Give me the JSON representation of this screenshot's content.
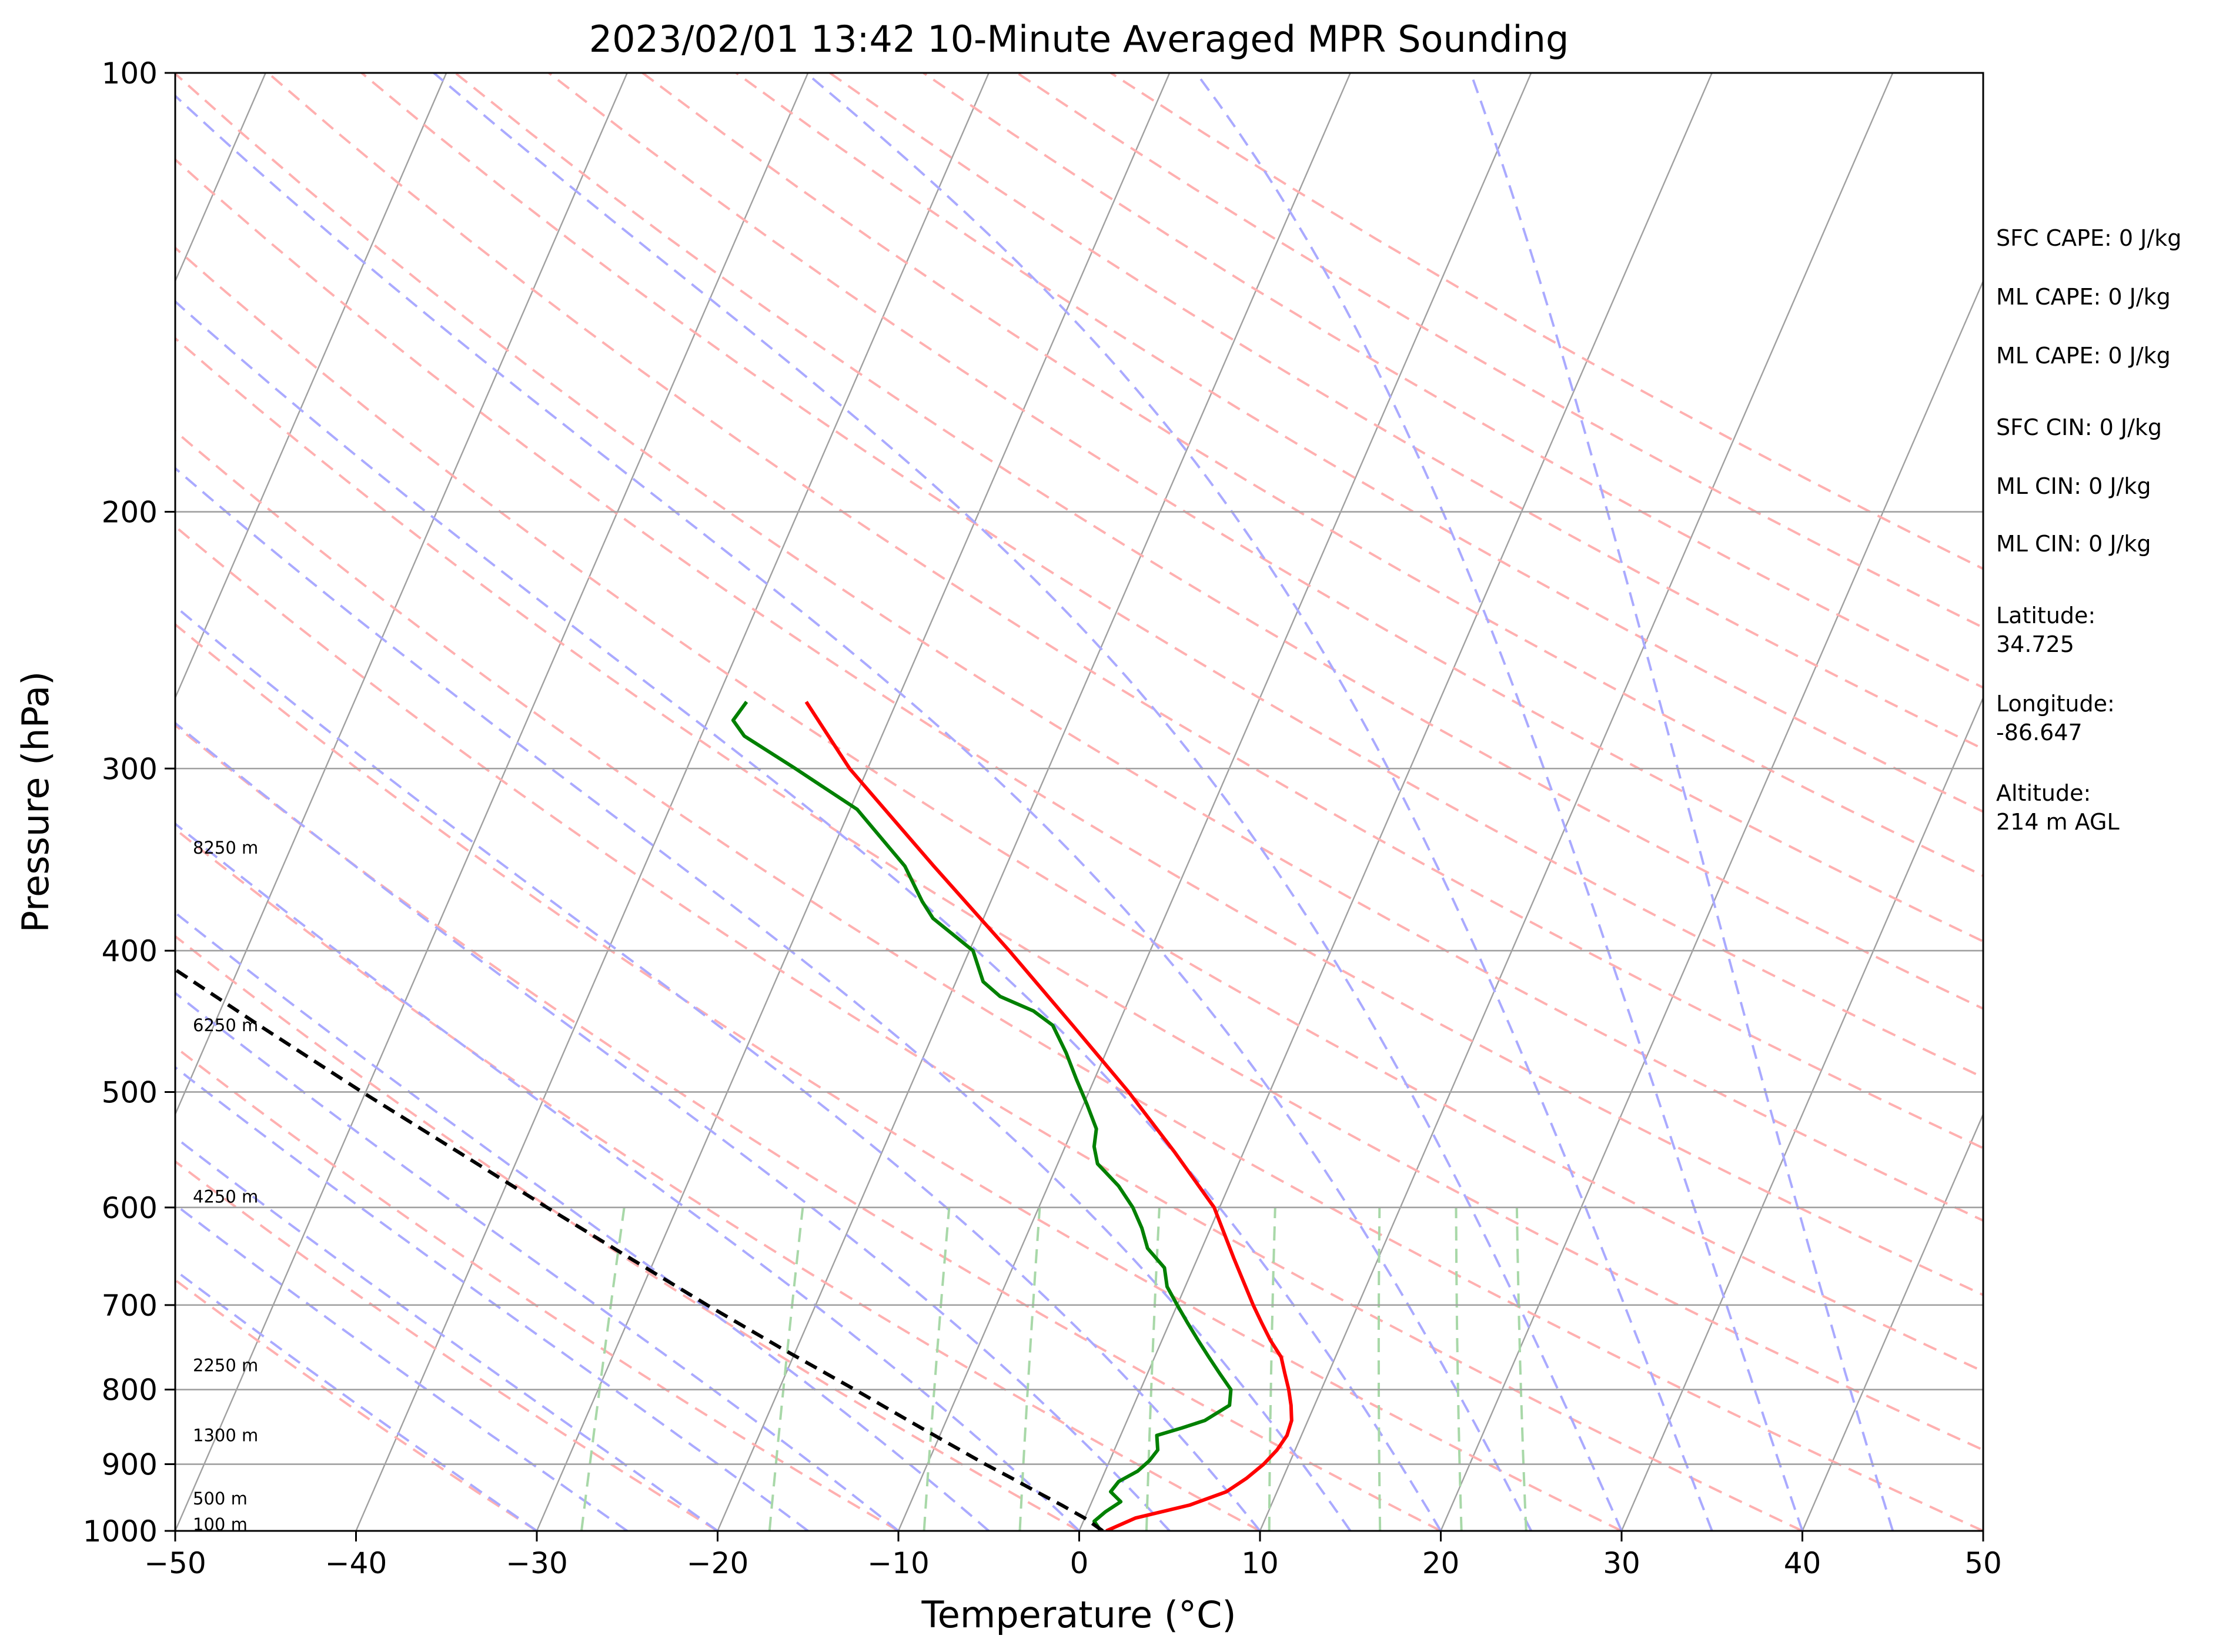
{
  "chart_data": {
    "type": "line",
    "subtype": "skew-T log-P sounding",
    "title": "2023/02/01 13:42 10-Minute Averaged MPR Sounding",
    "xlabel": "Temperature (°C)",
    "ylabel": "Pressure (hPa)",
    "xlim": [
      -50,
      50
    ],
    "ylim": [
      1000,
      100
    ],
    "y_scale": "log",
    "x_ticks": [
      "−50",
      "−40",
      "−30",
      "−20",
      "−10",
      "0",
      "10",
      "20",
      "30",
      "40",
      "50"
    ],
    "x_tick_values": [
      -50,
      -40,
      -30,
      -20,
      -10,
      0,
      10,
      20,
      30,
      40,
      50
    ],
    "y_ticks": [
      "100",
      "200",
      "300",
      "400",
      "500",
      "600",
      "700",
      "800",
      "900",
      "1000"
    ],
    "y_tick_values": [
      100,
      200,
      300,
      400,
      500,
      600,
      700,
      800,
      900,
      1000
    ],
    "grid": true,
    "series": [
      {
        "key": "temperature",
        "color": "#ff0000",
        "points": [
          [
            1000,
            1.5
          ],
          [
            980,
            2.8
          ],
          [
            960,
            5.5
          ],
          [
            940,
            7.2
          ],
          [
            920,
            8.0
          ],
          [
            900,
            8.6
          ],
          [
            880,
            9.0
          ],
          [
            860,
            9.2
          ],
          [
            840,
            9.1
          ],
          [
            820,
            8.7
          ],
          [
            800,
            8.2
          ],
          [
            780,
            7.6
          ],
          [
            760,
            7.0
          ],
          [
            740,
            6.0
          ],
          [
            720,
            5.1
          ],
          [
            700,
            4.2
          ],
          [
            650,
            2.0
          ],
          [
            600,
            -0.3
          ],
          [
            550,
            -3.8
          ],
          [
            500,
            -7.8
          ],
          [
            450,
            -12.5
          ],
          [
            400,
            -17.8
          ],
          [
            350,
            -24.0
          ],
          [
            300,
            -31.0
          ],
          [
            270,
            -35.0
          ]
        ]
      },
      {
        "key": "dewpoint",
        "color": "#008000",
        "points": [
          [
            1000,
            1.2
          ],
          [
            985,
            0.6
          ],
          [
            970,
            1.0
          ],
          [
            955,
            1.6
          ],
          [
            940,
            0.8
          ],
          [
            925,
            1.0
          ],
          [
            910,
            1.8
          ],
          [
            895,
            2.2
          ],
          [
            880,
            2.4
          ],
          [
            860,
            2.0
          ],
          [
            850,
            3.2
          ],
          [
            840,
            4.3
          ],
          [
            820,
            5.3
          ],
          [
            800,
            5.0
          ],
          [
            780,
            4.0
          ],
          [
            760,
            3.0
          ],
          [
            740,
            2.0
          ],
          [
            720,
            1.0
          ],
          [
            700,
            0.0
          ],
          [
            680,
            -1.0
          ],
          [
            660,
            -1.6
          ],
          [
            640,
            -3.0
          ],
          [
            620,
            -3.8
          ],
          [
            600,
            -4.8
          ],
          [
            580,
            -6.1
          ],
          [
            560,
            -7.8
          ],
          [
            545,
            -8.4
          ],
          [
            530,
            -8.7
          ],
          [
            510,
            -9.8
          ],
          [
            490,
            -11.0
          ],
          [
            470,
            -12.2
          ],
          [
            450,
            -13.6
          ],
          [
            440,
            -15.0
          ],
          [
            430,
            -17.2
          ],
          [
            420,
            -18.5
          ],
          [
            400,
            -19.8
          ],
          [
            380,
            -22.8
          ],
          [
            370,
            -23.8
          ],
          [
            350,
            -25.6
          ],
          [
            320,
            -29.6
          ],
          [
            300,
            -34.0
          ],
          [
            285,
            -37.6
          ],
          [
            278,
            -38.6
          ],
          [
            270,
            -38.3
          ]
        ]
      },
      {
        "key": "parcel",
        "color": "#000000",
        "points": [
          [
            1000,
            1.3
          ],
          [
            980,
            0.0
          ],
          [
            960,
            -1.6
          ],
          [
            940,
            -3.3
          ],
          [
            920,
            -5.0
          ],
          [
            900,
            -6.8
          ],
          [
            850,
            -11.2
          ],
          [
            800,
            -15.8
          ],
          [
            750,
            -20.8
          ],
          [
            700,
            -26.0
          ],
          [
            650,
            -31.4
          ],
          [
            600,
            -37.2
          ],
          [
            550,
            -43.4
          ],
          [
            500,
            -50.2
          ],
          [
            450,
            -57.5
          ],
          [
            400,
            -65.5
          ],
          [
            350,
            -74.6
          ],
          [
            300,
            -84.6
          ],
          [
            270,
            -91.2
          ]
        ]
      }
    ],
    "height_labels": [
      {
        "text": "100 m",
        "pressure": 990
      },
      {
        "text": "500 m",
        "pressure": 950
      },
      {
        "text": "1300 m",
        "pressure": 860
      },
      {
        "text": "2250 m",
        "pressure": 770
      },
      {
        "text": "4250 m",
        "pressure": 590
      },
      {
        "text": "6250 m",
        "pressure": 450
      },
      {
        "text": "8250 m",
        "pressure": 340
      }
    ],
    "side_panel": [
      [
        "SFC CAPE: 0 J/kg"
      ],
      [
        "ML CAPE: 0 J/kg"
      ],
      [
        "ML CAPE: 0 J/kg"
      ],
      [
        "SFC CIN: 0 J/kg"
      ],
      [
        "ML CIN: 0 J/kg"
      ],
      [
        "ML CIN: 0 J/kg"
      ],
      [
        "Latitude:",
        "34.725"
      ],
      [
        "Longitude:",
        "-86.647"
      ],
      [
        "Altitude:",
        "214 m AGL"
      ]
    ],
    "reference_lines": {
      "isotherm_color": "#a0a0a0",
      "dry_adiabat_color": "#ffb0b0",
      "moist_adiabat_color": "#aaaaff",
      "mixing_ratio_color": "#a8d8a8",
      "isobar_color": "#a0a0a0"
    }
  }
}
